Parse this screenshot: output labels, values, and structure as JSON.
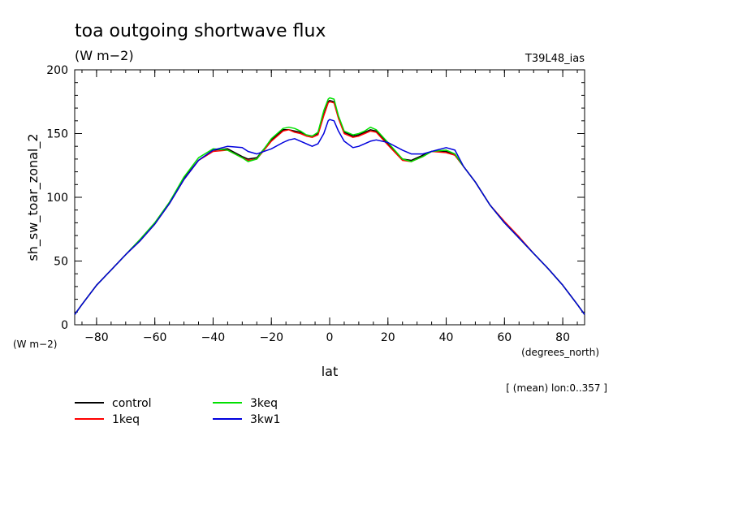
{
  "chart_data": {
    "type": "line",
    "title": "toa outgoing shortwave flux",
    "subtitle": "(W m−2)",
    "run_label": "T39L48_ias",
    "xlabel": "lat",
    "xunit": "(degrees_north)",
    "ylabel": "sh_sw_toar_zonal_2",
    "yunit": "(W m−2)",
    "footnote": "[ (mean) lon:0..357 ]",
    "xlim": [
      -87.5,
      87.5
    ],
    "ylim": [
      0,
      200
    ],
    "xticks": [
      -80,
      -60,
      -40,
      -20,
      0,
      20,
      40,
      60,
      80
    ],
    "yticks": [
      0,
      50,
      100,
      150,
      200
    ],
    "x": [
      -87.5,
      -85,
      -80,
      -75,
      -70,
      -65,
      -60,
      -55,
      -50,
      -45,
      -40,
      -35,
      -30,
      -28,
      -25,
      -20,
      -16,
      -14,
      -12,
      -10,
      -8,
      -6,
      -4,
      -2,
      -0.5,
      0,
      1.5,
      3,
      5,
      8,
      10,
      12,
      14,
      16,
      20,
      25,
      28,
      32,
      35,
      40,
      43,
      46,
      50,
      55,
      60,
      65,
      70,
      75,
      80,
      85,
      87.5
    ],
    "series": [
      {
        "name": "control",
        "color": "#000000",
        "values": [
          8,
          16,
          31,
          43,
          55,
          67,
          80,
          96,
          115,
          129,
          137,
          138,
          132,
          130,
          131,
          145,
          153,
          153,
          152,
          151,
          149,
          148,
          150,
          165,
          175,
          176,
          175,
          163,
          151,
          148,
          149,
          151,
          153,
          152,
          142,
          130,
          129,
          133,
          136,
          136,
          133,
          124,
          112,
          94,
          80,
          68,
          56,
          44,
          31,
          16,
          8
        ]
      },
      {
        "name": "1keq",
        "color": "#ff0000",
        "values": [
          8,
          16,
          31,
          43,
          55,
          66,
          79,
          95,
          114,
          129,
          136,
          137,
          131,
          129,
          130,
          144,
          152,
          153,
          151,
          150,
          148,
          147,
          149,
          164,
          174,
          175,
          174,
          162,
          150,
          147,
          148,
          150,
          152,
          151,
          141,
          129,
          128,
          132,
          136,
          135,
          133,
          124,
          112,
          94,
          81,
          69,
          56,
          44,
          31,
          16,
          8
        ]
      },
      {
        "name": "3keq",
        "color": "#00e000",
        "values": [
          8,
          16,
          31,
          43,
          55,
          67,
          80,
          96,
          116,
          131,
          138,
          137,
          131,
          128,
          130,
          146,
          154,
          155,
          154,
          152,
          149,
          148,
          151,
          168,
          177,
          178,
          177,
          164,
          152,
          149,
          150,
          152,
          155,
          153,
          143,
          130,
          128,
          132,
          136,
          137,
          134,
          124,
          112,
          94,
          80,
          68,
          56,
          44,
          31,
          16,
          8
        ]
      },
      {
        "name": "3kw1",
        "color": "#0000dd",
        "values": [
          8,
          16,
          31,
          43,
          55,
          66,
          79,
          95,
          114,
          129,
          137,
          140,
          139,
          136,
          134,
          138,
          143,
          145,
          146,
          144,
          142,
          140,
          142,
          150,
          160,
          161,
          160,
          152,
          144,
          139,
          140,
          142,
          144,
          145,
          143,
          137,
          134,
          134,
          136,
          139,
          137,
          124,
          112,
          94,
          80,
          68,
          56,
          44,
          31,
          16,
          8
        ]
      }
    ],
    "legend_position": "bottom-left",
    "grid": false
  }
}
